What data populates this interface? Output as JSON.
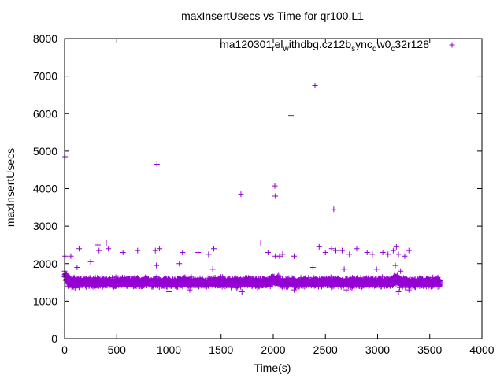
{
  "chart_data": {
    "type": "scatter",
    "title": "maxInsertUsecs vs Time for qr100.L1",
    "xlabel": "Time(s)",
    "ylabel": "maxInsertUsecs",
    "xlim": [
      0,
      4000
    ],
    "ylim": [
      0,
      8000
    ],
    "x_ticks": [
      0,
      500,
      1000,
      1500,
      2000,
      2500,
      3000,
      3500,
      4000
    ],
    "y_ticks": [
      0,
      1000,
      2000,
      3000,
      4000,
      5000,
      6000,
      7000,
      8000
    ],
    "marker": "+",
    "legend_position": "top-right",
    "series": [
      {
        "name": "ma120301",
        "name_parts": [
          "ma120301",
          "r",
          "el",
          "w",
          "ithdbg.cz12b",
          "s",
          "ync",
          "d",
          "w0",
          "c",
          "32r128"
        ],
        "color": "#9400d3",
        "band": {
          "x_start": 0,
          "x_end": 3600,
          "y_center": 1500,
          "y_spread": 160
        },
        "points": [
          [
            5,
            4850
          ],
          [
            885,
            4650
          ],
          [
            1690,
            3850
          ],
          [
            2015,
            4070
          ],
          [
            2020,
            3800
          ],
          [
            2170,
            5950
          ],
          [
            2400,
            6750
          ],
          [
            2580,
            3450
          ],
          [
            5,
            2200
          ],
          [
            60,
            2200
          ],
          [
            140,
            2400
          ],
          [
            320,
            2500
          ],
          [
            330,
            2350
          ],
          [
            400,
            2550
          ],
          [
            420,
            2400
          ],
          [
            560,
            2300
          ],
          [
            700,
            2350
          ],
          [
            870,
            2350
          ],
          [
            910,
            2400
          ],
          [
            1130,
            2300
          ],
          [
            1280,
            2300
          ],
          [
            1380,
            2250
          ],
          [
            1430,
            2400
          ],
          [
            1880,
            2550
          ],
          [
            1950,
            2300
          ],
          [
            2020,
            2200
          ],
          [
            2060,
            2200
          ],
          [
            2090,
            2250
          ],
          [
            2200,
            2200
          ],
          [
            2440,
            2450
          ],
          [
            2500,
            2300
          ],
          [
            2560,
            2400
          ],
          [
            2600,
            2350
          ],
          [
            2660,
            2350
          ],
          [
            2730,
            2250
          ],
          [
            2800,
            2400
          ],
          [
            2900,
            2300
          ],
          [
            2950,
            2250
          ],
          [
            3050,
            2300
          ],
          [
            3100,
            2250
          ],
          [
            3150,
            2350
          ],
          [
            3180,
            2450
          ],
          [
            3200,
            2250
          ],
          [
            3260,
            2200
          ],
          [
            3300,
            2350
          ],
          [
            0,
            1800
          ],
          [
            10,
            1650
          ],
          [
            20,
            1700
          ],
          [
            100,
            1350
          ],
          [
            1000,
            1250
          ],
          [
            1200,
            1300
          ],
          [
            1700,
            1250
          ],
          [
            2200,
            1300
          ],
          [
            2700,
            1300
          ],
          [
            3200,
            1250
          ],
          [
            3220,
            1800
          ],
          [
            3300,
            1300
          ],
          [
            120,
            1900
          ],
          [
            880,
            1950
          ],
          [
            1420,
            1850
          ],
          [
            2380,
            1900
          ],
          [
            2680,
            1850
          ],
          [
            2990,
            1850
          ],
          [
            3170,
            1950
          ],
          [
            250,
            2050
          ],
          [
            1100,
            2000
          ]
        ]
      }
    ]
  }
}
